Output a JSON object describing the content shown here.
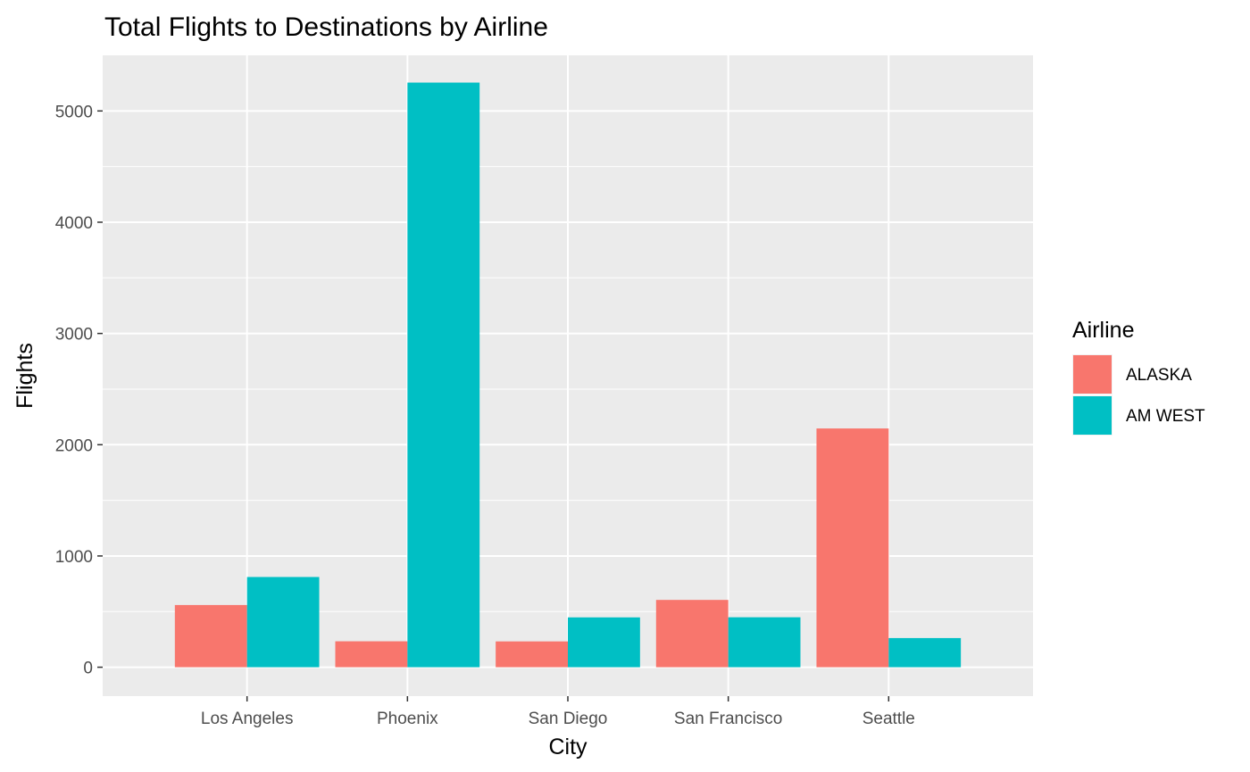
{
  "chart_data": {
    "type": "bar",
    "title": "Total Flights to Destinations by Airline",
    "xlabel": "City",
    "ylabel": "Flights",
    "categories": [
      "Los Angeles",
      "Phoenix",
      "San Diego",
      "San Francisco",
      "Seattle"
    ],
    "series": [
      {
        "name": "ALASKA",
        "color": "#F8766D",
        "values": [
          559,
          233,
          232,
          605,
          2146
        ]
      },
      {
        "name": "AM WEST",
        "color": "#00BFC4",
        "values": [
          811,
          5255,
          448,
          449,
          262
        ]
      }
    ],
    "ylim": [
      -260,
      5500
    ],
    "yticks": [
      0,
      1000,
      2000,
      3000,
      4000,
      5000
    ],
    "grid": true,
    "legend": {
      "title": "Airline",
      "position": "right"
    },
    "panel_background": "#EBEBEB",
    "grid_color": "#FFFFFF"
  }
}
